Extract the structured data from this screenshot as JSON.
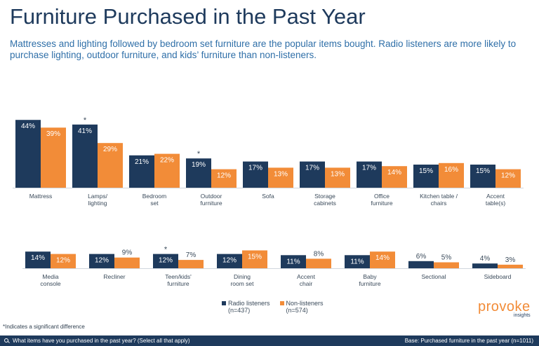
{
  "title": "Furniture Purchased in the Past Year",
  "subtitle": "Mattresses and lighting followed by bedroom set furniture are the popular items bought. Radio listeners are more likely to purchase lighting, outdoor furniture, and kids’ furniture than non-listeners.",
  "colors": {
    "radio": "#1e3a5c",
    "non": "#f28c38",
    "title": "#1e3a5c",
    "accent": "#2f6fa8"
  },
  "chart_data": [
    {
      "type": "bar",
      "categories": [
        "Mattress",
        "Lamps/ lighting",
        "Bedroom set",
        "Outdoor furniture",
        "Sofa",
        "Storage cabinets",
        "Office furniture",
        "Kitchen table / chairs",
        "Accent table(s)"
      ],
      "category_lines": [
        [
          "Mattress"
        ],
        [
          "Lamps/",
          "lighting"
        ],
        [
          "Bedroom",
          "set"
        ],
        [
          "Outdoor",
          "furniture"
        ],
        [
          "Sofa"
        ],
        [
          "Storage",
          "cabinets"
        ],
        [
          "Office",
          "furniture"
        ],
        [
          "Kitchen table /",
          "chairs"
        ],
        [
          "Accent",
          "table(s)"
        ]
      ],
      "series": [
        {
          "name": "Radio listeners",
          "values": [
            44,
            41,
            21,
            19,
            17,
            17,
            17,
            15,
            15
          ],
          "labels": [
            "44%",
            "41%",
            "21%",
            "19%",
            "17%",
            "17%",
            "17%",
            "15%",
            "15%"
          ]
        },
        {
          "name": "Non-listeners",
          "values": [
            39,
            29,
            22,
            12,
            13,
            13,
            14,
            16,
            12
          ],
          "labels": [
            "39%",
            "29%",
            "22%",
            "12%",
            "13%",
            "13%",
            "14%",
            "16%",
            "12%"
          ]
        }
      ],
      "significant": [
        false,
        true,
        false,
        true,
        false,
        false,
        false,
        false,
        false
      ],
      "significance_marker": "*"
    },
    {
      "type": "bar",
      "categories": [
        "Media console",
        "Recliner",
        "Teen/kids' furniture",
        "Dining room set",
        "Accent chair",
        "Baby furniture",
        "Sectional",
        "Sideboard"
      ],
      "category_lines": [
        [
          "Media",
          "console"
        ],
        [
          "Recliner"
        ],
        [
          "Teen/kids'",
          "furniture"
        ],
        [
          "Dining",
          "room set"
        ],
        [
          "Accent",
          "chair"
        ],
        [
          "Baby",
          "furniture"
        ],
        [
          "Sectional"
        ],
        [
          "Sideboard"
        ]
      ],
      "series": [
        {
          "name": "Radio listeners",
          "values": [
            14,
            12,
            12,
            12,
            11,
            11,
            6,
            4
          ],
          "labels": [
            "14%",
            "12%",
            "12%",
            "12%",
            "11%",
            "11%",
            "6%",
            "4%"
          ]
        },
        {
          "name": "Non-listeners",
          "values": [
            12,
            9,
            7,
            15,
            8,
            14,
            5,
            3
          ],
          "labels": [
            "12%",
            "9%",
            "7%",
            "15%",
            "8%",
            "14%",
            "5%",
            "3%"
          ]
        }
      ],
      "significant": [
        false,
        false,
        true,
        false,
        false,
        false,
        false,
        false
      ],
      "significance_marker": "*"
    }
  ],
  "legend": [
    {
      "label": "Radio listeners",
      "base": "(n=437)"
    },
    {
      "label": "Non-listeners",
      "base": "(n=574)"
    }
  ],
  "logo": {
    "name": "provoke",
    "sub": "insights"
  },
  "footnote": "*Indicates a significant difference",
  "footer": {
    "question": "What items have you purchased in the past year? (Select all that apply)",
    "base": "Base: Purchased furniture in the past year (n=1011)",
    "icon": "search-icon"
  }
}
